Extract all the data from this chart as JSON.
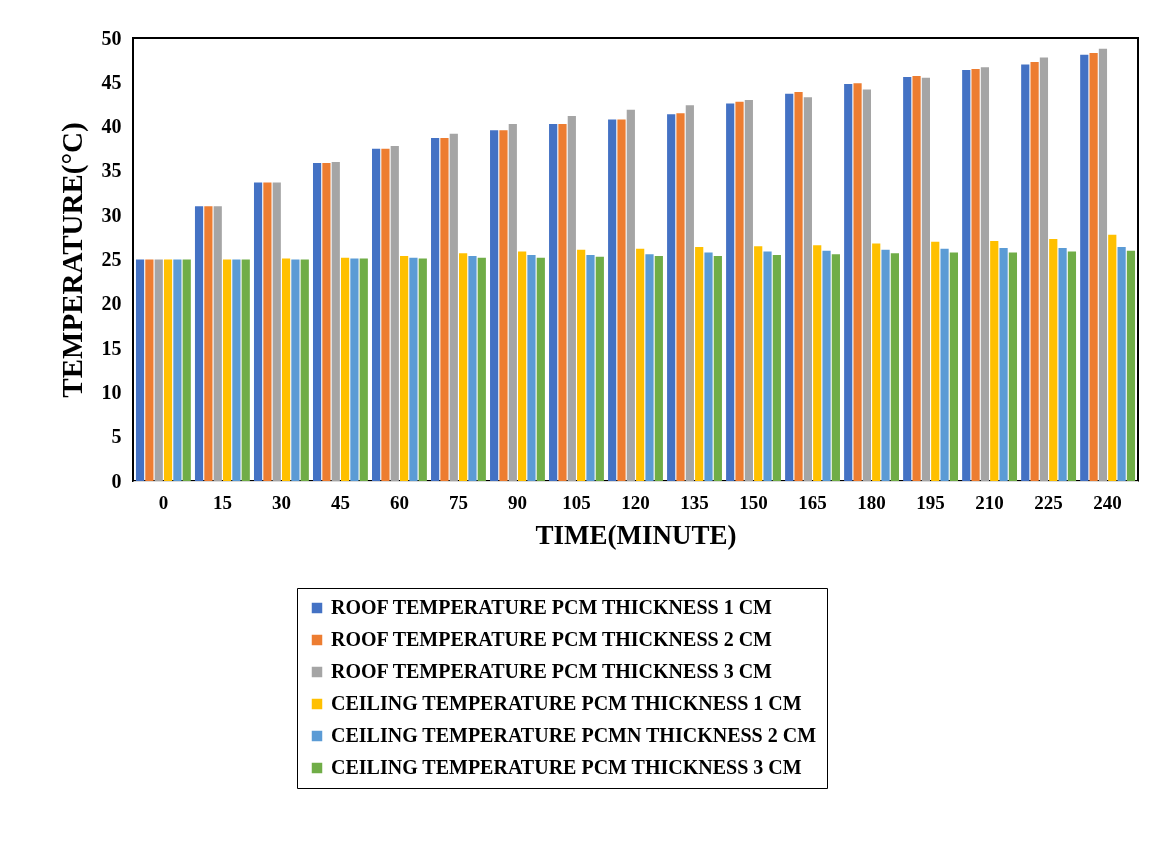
{
  "chart_data": {
    "type": "bar",
    "xlabel": "TIME(MINUTE)",
    "ylabel": "TEMPERATURE(°C)",
    "categories": [
      "0",
      "15",
      "30",
      "45",
      "60",
      "75",
      "90",
      "105",
      "120",
      "135",
      "150",
      "165",
      "180",
      "195",
      "210",
      "225",
      "240"
    ],
    "series": [
      {
        "name": "ROOF TEMPERATURE PCM THICKNESS 1 CM",
        "color": "#4472c4",
        "values": [
          25,
          31,
          33.7,
          35.9,
          37.5,
          38.7,
          39.6,
          40.3,
          40.8,
          41.4,
          42.6,
          43.7,
          44.8,
          45.6,
          46.4,
          47.0,
          48.1
        ]
      },
      {
        "name": "ROOF TEMPERATURE PCM THICKNESS 2 CM",
        "color": "#ed7d31",
        "values": [
          25,
          31,
          33.7,
          35.9,
          37.5,
          38.7,
          39.6,
          40.3,
          40.8,
          41.5,
          42.8,
          43.9,
          44.9,
          45.7,
          46.5,
          47.3,
          48.3
        ]
      },
      {
        "name": "ROOF TEMPERATURE PCM THICKNESS 3 CM",
        "color": "#a5a5a5",
        "values": [
          25,
          31,
          33.7,
          36.0,
          37.8,
          39.2,
          40.3,
          41.2,
          41.9,
          42.4,
          43.0,
          43.3,
          44.2,
          45.5,
          46.7,
          47.8,
          48.8
        ]
      },
      {
        "name": "CEILING TEMPERATURE PCM THICKNESS 1 CM",
        "color": "#ffc000",
        "values": [
          25,
          25,
          25.1,
          25.2,
          25.4,
          25.7,
          25.9,
          26.1,
          26.2,
          26.4,
          26.5,
          26.6,
          26.8,
          27.0,
          27.1,
          27.3,
          27.8
        ]
      },
      {
        "name": "CEILING TEMPERATURE PCMN THICKNESS 2 CM",
        "color": "#5b9bd5",
        "values": [
          25,
          25,
          25,
          25.1,
          25.2,
          25.4,
          25.5,
          25.5,
          25.6,
          25.8,
          25.9,
          26.0,
          26.1,
          26.2,
          26.3,
          26.3,
          26.4
        ]
      },
      {
        "name": "CEILING TEMPERATURE PCM THICKNESS 3 CM",
        "color": "#70ad47",
        "values": [
          25,
          25,
          25,
          25.1,
          25.1,
          25.2,
          25.2,
          25.3,
          25.4,
          25.4,
          25.5,
          25.6,
          25.7,
          25.8,
          25.8,
          25.9,
          26.0
        ]
      }
    ],
    "ylim": [
      0,
      50
    ],
    "yticks": [
      0,
      5,
      10,
      15,
      20,
      25,
      30,
      35,
      40,
      45,
      50
    ],
    "grid": false,
    "legend": "bottom"
  }
}
